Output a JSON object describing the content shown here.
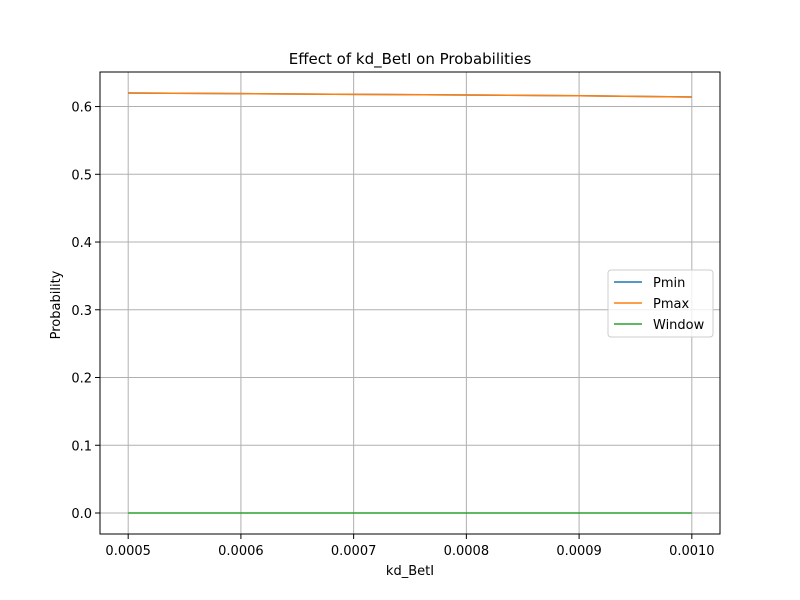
{
  "chart_data": {
    "type": "line",
    "title": "Effect of kd_BetI on Probabilities",
    "xlabel": "kd_BetI",
    "ylabel": "Probability",
    "x": [
      0.0005,
      0.0006,
      0.0007,
      0.0008,
      0.0009,
      0.001
    ],
    "xlim": [
      0.000475,
      0.001025
    ],
    "ylim": [
      -0.031,
      0.651
    ],
    "xticks": [
      0.0005,
      0.0006,
      0.0007,
      0.0008,
      0.0009,
      0.001
    ],
    "xtick_labels": [
      "0.0005",
      "0.0006",
      "0.0007",
      "0.0008",
      "0.0009",
      "0.0010"
    ],
    "yticks": [
      0.0,
      0.1,
      0.2,
      0.3,
      0.4,
      0.5,
      0.6
    ],
    "ytick_labels": [
      "0.0",
      "0.1",
      "0.2",
      "0.3",
      "0.4",
      "0.5",
      "0.6"
    ],
    "grid": true,
    "legend_position": "center-right",
    "series": [
      {
        "name": "Pmin",
        "color": "#1f77b4",
        "values": [
          0.62,
          0.619,
          0.618,
          0.617,
          0.616,
          0.614
        ]
      },
      {
        "name": "Pmax",
        "color": "#ff7f0e",
        "values": [
          0.62,
          0.619,
          0.618,
          0.617,
          0.616,
          0.614
        ]
      },
      {
        "name": "Window",
        "color": "#2ca02c",
        "values": [
          0.0,
          0.0,
          0.0,
          0.0,
          0.0,
          0.0
        ]
      }
    ]
  }
}
